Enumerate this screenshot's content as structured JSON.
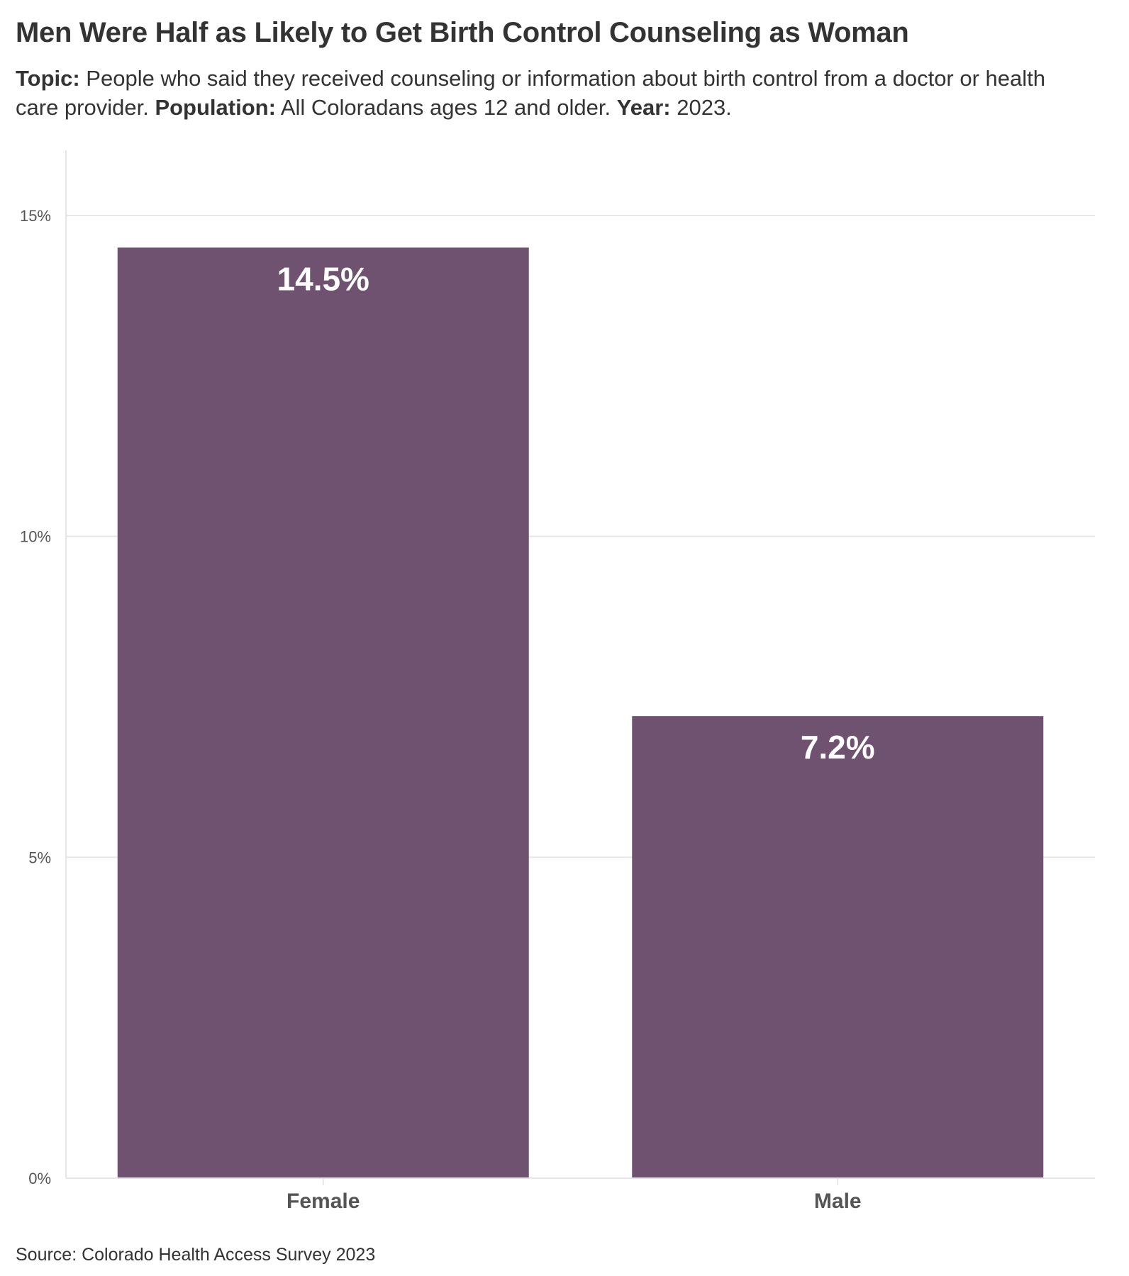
{
  "title": "Men Were Half as Likely to Get Birth Control Counseling as Woman",
  "subtitle": {
    "topic_label": "Topic:",
    "topic_text": " People who said they received counseling or information about birth control from a doctor or health care provider. ",
    "population_label": "Population:",
    "population_text": " All Coloradans ages 12 and older. ",
    "year_label": "Year:",
    "year_text": " 2023."
  },
  "source": "Source: Colorado Health Access Survey 2023",
  "colors": {
    "bar": "#6e5270",
    "grid": "#e6e6e6",
    "axis_text": "#555555",
    "label_text": "#ffffff"
  },
  "chart_data": {
    "type": "bar",
    "categories": [
      "Female",
      "Male"
    ],
    "values": [
      14.5,
      7.2
    ],
    "value_labels": [
      "14.5%",
      "7.2%"
    ],
    "ylim": [
      0,
      16
    ],
    "yticks": [
      0,
      5,
      10,
      15
    ],
    "ytick_labels": [
      "0%",
      "5%",
      "10%",
      "15%"
    ],
    "xlabel": "",
    "ylabel": "",
    "grid": true
  }
}
